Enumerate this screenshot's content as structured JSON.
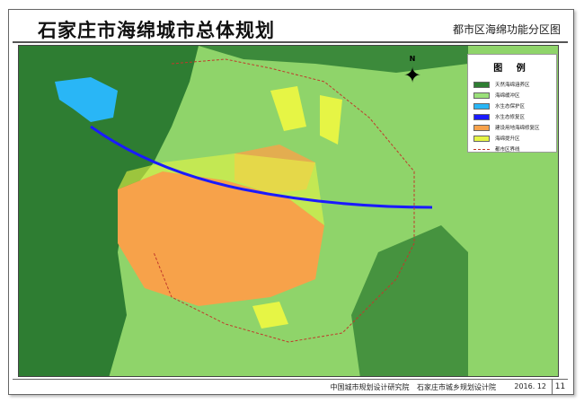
{
  "title": "石家庄市海绵城市总体规划",
  "subtitle": "都市区海绵功能分区图",
  "legend": {
    "heading": "图 例",
    "items": [
      {
        "label": "天然海绵涵养区",
        "color": "#2e7d32"
      },
      {
        "label": "海绵缓冲区",
        "color": "#9be07a"
      },
      {
        "label": "水生态保护区",
        "color": "#29b6f6"
      },
      {
        "label": "水生态修复区",
        "color": "#1a1aff"
      },
      {
        "label": "建设用地海绵修复区",
        "color": "#f7a24a"
      },
      {
        "label": "海绵提升区",
        "color": "#e6f545"
      },
      {
        "label": "都市区界线",
        "color": "#c0392b"
      }
    ]
  },
  "compass": {
    "label": "N"
  },
  "footer": {
    "org1": "中国城市规划设计研究院",
    "org2": "石家庄市城乡规划设计院",
    "date": "2016. 12",
    "page": "11"
  }
}
